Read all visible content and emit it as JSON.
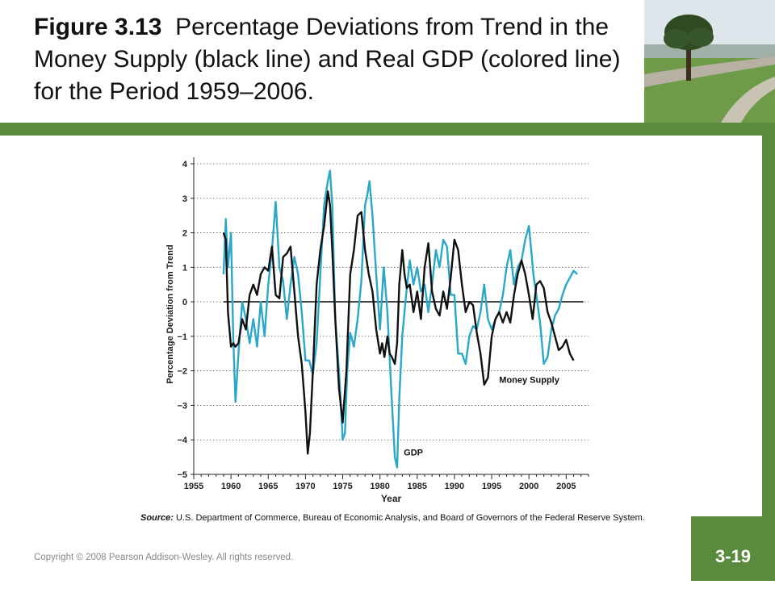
{
  "slide": {
    "figure_label": "Figure 3.13",
    "title_text": "Percentage Deviations from Trend in the Money Supply (black line) and Real GDP (colored line) for the Period 1959–2006.",
    "source_label": "Source:",
    "source_text": "U.S. Department of Commerce, Bureau of Economic Analysis, and Board of Governors of the Federal Reserve System.",
    "copyright": "Copyright © 2008 Pearson Addison-Wesley. All rights reserved.",
    "slide_number": "3-19",
    "colors": {
      "green": "#5a8a3c",
      "gdp": "#2aa7c9",
      "money": "#111111"
    }
  },
  "chart_data": {
    "type": "line",
    "xlabel": "Year",
    "ylabel": "Percentage Deviation from Trend",
    "xlim": [
      1955,
      2008
    ],
    "ylim": [
      -5,
      4
    ],
    "x_ticks": [
      1955,
      1960,
      1965,
      1970,
      1975,
      1980,
      1985,
      1990,
      1995,
      2000,
      2005
    ],
    "y_ticks": [
      4,
      3,
      2,
      1,
      0,
      -1,
      -2,
      -3,
      -4,
      -5
    ],
    "grid": "dotted horizontal",
    "annotations": [
      "Money Supply",
      "GDP"
    ],
    "series": [
      {
        "name": "Money Supply",
        "color": "#111111",
        "x": [
          1959.0,
          1959.3,
          1959.6,
          1960.0,
          1960.3,
          1960.6,
          1961.0,
          1961.5,
          1962.0,
          1962.5,
          1963.0,
          1963.5,
          1964.0,
          1964.5,
          1965.0,
          1965.5,
          1966.0,
          1966.5,
          1967.0,
          1967.5,
          1968.0,
          1968.5,
          1969.0,
          1969.5,
          1970.0,
          1970.3,
          1970.6,
          1971.0,
          1971.5,
          1972.0,
          1972.5,
          1973.0,
          1973.3,
          1973.6,
          1974.0,
          1974.5,
          1975.0,
          1975.5,
          1976.0,
          1976.5,
          1977.0,
          1977.5,
          1978.0,
          1978.5,
          1979.0,
          1979.5,
          1980.0,
          1980.3,
          1980.6,
          1981.0,
          1981.3,
          1981.6,
          1982.0,
          1982.3,
          1982.6,
          1983.0,
          1983.3,
          1983.6,
          1984.0,
          1984.5,
          1985.0,
          1985.5,
          1986.0,
          1986.5,
          1987.0,
          1987.5,
          1988.0,
          1988.5,
          1989.0,
          1989.5,
          1990.0,
          1990.5,
          1991.0,
          1991.5,
          1992.0,
          1992.5,
          1993.0,
          1993.5,
          1994.0,
          1994.5,
          1995.0,
          1995.5,
          1996.0,
          1996.5,
          1997.0,
          1997.5,
          1998.0,
          1998.5,
          1999.0,
          1999.5,
          2000.0,
          2000.5,
          2001.0,
          2001.5,
          2002.0,
          2002.5,
          2003.0,
          2003.5,
          2004.0,
          2004.5,
          2005.0,
          2005.5,
          2006.0
        ],
        "y": [
          2.0,
          1.8,
          -0.3,
          -1.3,
          -1.2,
          -1.3,
          -1.2,
          -0.5,
          -0.8,
          0.2,
          0.5,
          0.2,
          0.8,
          1.0,
          0.9,
          1.6,
          0.2,
          0.1,
          1.3,
          1.4,
          1.6,
          0.3,
          -1.0,
          -1.8,
          -3.2,
          -4.4,
          -3.8,
          -2.0,
          0.5,
          1.5,
          2.2,
          3.2,
          2.8,
          1.5,
          -0.5,
          -2.5,
          -3.5,
          -2.0,
          0.8,
          1.5,
          2.5,
          2.6,
          1.5,
          0.8,
          0.3,
          -0.8,
          -1.5,
          -1.2,
          -1.6,
          -1.0,
          -1.5,
          -1.6,
          -1.8,
          -1.2,
          0.5,
          1.5,
          0.8,
          0.4,
          0.5,
          -0.3,
          0.3,
          -0.5,
          1.0,
          1.7,
          0.3,
          -0.2,
          -0.4,
          0.3,
          -0.2,
          0.7,
          1.8,
          1.5,
          0.5,
          -0.3,
          0.0,
          -0.1,
          -0.9,
          -1.5,
          -2.4,
          -2.2,
          -1.0,
          -0.5,
          -0.3,
          -0.6,
          -0.3,
          -0.6,
          0.2,
          0.8,
          1.2,
          0.8,
          0.2,
          -0.5,
          0.5,
          0.6,
          0.4,
          -0.3,
          -0.6,
          -1.0,
          -1.4,
          -1.3,
          -1.1,
          -1.5,
          -1.7
        ]
      },
      {
        "name": "GDP",
        "color": "#2aa7c9",
        "x": [
          1959.0,
          1959.3,
          1959.6,
          1960.0,
          1960.3,
          1960.6,
          1961.0,
          1961.5,
          1962.0,
          1962.5,
          1963.0,
          1963.5,
          1964.0,
          1964.5,
          1965.0,
          1965.5,
          1966.0,
          1966.5,
          1967.0,
          1967.5,
          1968.0,
          1968.5,
          1969.0,
          1969.5,
          1970.0,
          1970.5,
          1971.0,
          1971.5,
          1972.0,
          1972.5,
          1973.0,
          1973.3,
          1973.6,
          1974.0,
          1974.5,
          1975.0,
          1975.3,
          1975.6,
          1976.0,
          1976.5,
          1977.0,
          1977.5,
          1978.0,
          1978.3,
          1978.6,
          1979.0,
          1979.5,
          1980.0,
          1980.5,
          1981.0,
          1981.5,
          1982.0,
          1982.3,
          1982.6,
          1983.0,
          1983.5,
          1984.0,
          1984.5,
          1985.0,
          1985.5,
          1986.0,
          1986.5,
          1987.0,
          1987.5,
          1988.0,
          1988.5,
          1989.0,
          1989.5,
          1990.0,
          1990.5,
          1991.0,
          1991.5,
          1992.0,
          1992.5,
          1993.0,
          1993.5,
          1994.0,
          1994.5,
          1995.0,
          1995.5,
          1996.0,
          1996.5,
          1997.0,
          1997.5,
          1998.0,
          1998.5,
          1999.0,
          1999.5,
          2000.0,
          2000.3,
          2000.6,
          2001.0,
          2001.5,
          2002.0,
          2002.5,
          2003.0,
          2003.5,
          2004.0,
          2004.5,
          2005.0,
          2005.5,
          2006.0,
          2006.5
        ],
        "y": [
          0.8,
          2.4,
          1.0,
          2.0,
          -1.0,
          -2.9,
          -1.5,
          0.0,
          -0.5,
          -1.2,
          -0.5,
          -1.3,
          0.0,
          -1.0,
          0.5,
          1.5,
          2.9,
          1.0,
          0.6,
          -0.5,
          0.5,
          1.3,
          0.8,
          -0.3,
          -1.7,
          -1.7,
          -2.1,
          -1.2,
          0.8,
          2.8,
          3.5,
          3.8,
          2.8,
          -0.5,
          -2.0,
          -4.0,
          -3.8,
          -2.0,
          -0.9,
          -1.3,
          -0.5,
          0.6,
          2.8,
          3.1,
          3.5,
          2.5,
          0.8,
          -0.8,
          1.0,
          -0.3,
          -2.5,
          -4.5,
          -4.8,
          -2.8,
          -1.0,
          0.2,
          1.2,
          0.5,
          1.0,
          0.3,
          0.5,
          -0.3,
          0.5,
          1.5,
          1.0,
          1.8,
          1.6,
          0.2,
          0.2,
          -1.5,
          -1.5,
          -1.8,
          -1.0,
          -0.7,
          -0.8,
          -0.3,
          0.5,
          -0.5,
          -0.8,
          -0.5,
          -0.3,
          0.2,
          1.0,
          1.5,
          0.5,
          1.0,
          1.2,
          1.8,
          2.2,
          1.5,
          0.8,
          0.2,
          -0.6,
          -1.8,
          -1.6,
          -0.8,
          -0.4,
          -0.2,
          0.2,
          0.5,
          0.7,
          0.9,
          0.8
        ]
      }
    ]
  }
}
